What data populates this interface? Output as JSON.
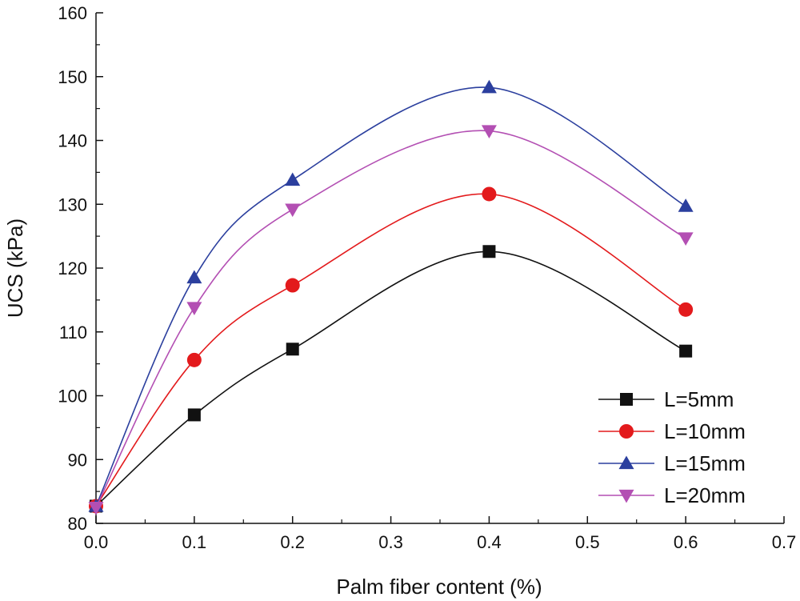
{
  "chart_data": {
    "type": "line",
    "title": "",
    "xlabel": "Palm fiber content (%)",
    "ylabel": "UCS (kPa)",
    "xlim": [
      0.0,
      0.7
    ],
    "ylim": [
      80,
      160
    ],
    "x_ticks": [
      "0.0",
      "0.1",
      "0.2",
      "0.3",
      "0.4",
      "0.5",
      "0.6",
      "0.7"
    ],
    "y_ticks": [
      "80",
      "90",
      "100",
      "110",
      "120",
      "130",
      "140",
      "150",
      "160"
    ],
    "grid": false,
    "legend_position": "bottom-right",
    "x": [
      0.0,
      0.1,
      0.2,
      0.4,
      0.6
    ],
    "series": [
      {
        "name": "L=5mm",
        "color": "#111111",
        "marker": "square",
        "values": [
          82.7,
          97.0,
          107.3,
          122.6,
          107.0
        ]
      },
      {
        "name": "L=10mm",
        "color": "#e31a1c",
        "marker": "circle",
        "values": [
          82.7,
          105.6,
          117.3,
          131.6,
          113.5
        ]
      },
      {
        "name": "L=15mm",
        "color": "#2b3f9e",
        "marker": "triangle-up",
        "values": [
          82.7,
          118.5,
          133.8,
          148.3,
          129.7
        ]
      },
      {
        "name": "L=20mm",
        "color": "#b34fb3",
        "marker": "triangle-down",
        "values": [
          82.5,
          113.8,
          129.2,
          141.5,
          124.7
        ]
      }
    ]
  }
}
